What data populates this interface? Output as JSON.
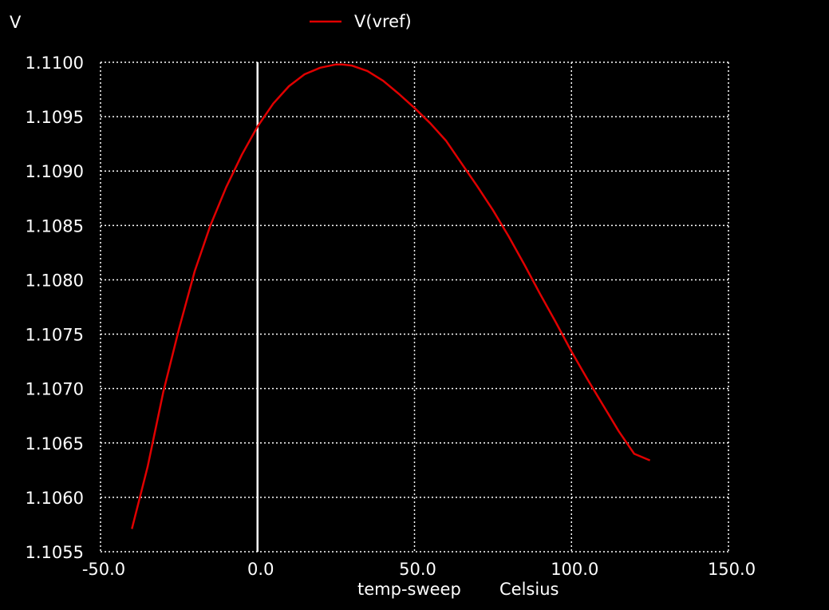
{
  "chart_data": {
    "type": "line",
    "title": "",
    "ylabel_unit": "V",
    "xlabel": "temp-sweep",
    "xlabel_unit": "Celsius",
    "xlim": [
      -50.0,
      150.0
    ],
    "ylim": [
      1.1055,
      1.11
    ],
    "x_ticks": [
      "-50.0",
      "0.0",
      "50.0",
      "100.0",
      "150.0"
    ],
    "y_ticks": [
      "1.1100",
      "1.1095",
      "1.1090",
      "1.1085",
      "1.1080",
      "1.1075",
      "1.1070",
      "1.1065",
      "1.1060",
      "1.1055"
    ],
    "grid": true,
    "grid_style": "dotted",
    "zero_axis": true,
    "legend_position": "top-center",
    "background_color": "#000000",
    "axis_color": "#ffffff",
    "series": [
      {
        "name": "V(vref)",
        "color": "#e00000",
        "x": [
          -40,
          -35,
          -30,
          -25,
          -20,
          -15,
          -10,
          -5,
          0,
          5,
          10,
          15,
          20,
          25,
          27,
          30,
          35,
          40,
          45,
          50,
          55,
          60,
          65,
          70,
          75,
          80,
          85,
          90,
          95,
          100,
          105,
          110,
          115,
          120,
          125
        ],
        "y": [
          1.10571,
          1.10628,
          1.10697,
          1.10755,
          1.10808,
          1.1085,
          1.10885,
          1.10915,
          1.10941,
          1.10962,
          1.10978,
          1.10989,
          1.10995,
          1.10998,
          1.10998,
          1.10997,
          1.10992,
          1.10983,
          1.10971,
          1.10958,
          1.10944,
          1.10928,
          1.10907,
          1.10886,
          1.10864,
          1.1084,
          1.10814,
          1.10787,
          1.10761,
          1.10734,
          1.10709,
          1.10685,
          1.10661,
          1.1064,
          1.10634
        ]
      }
    ]
  }
}
